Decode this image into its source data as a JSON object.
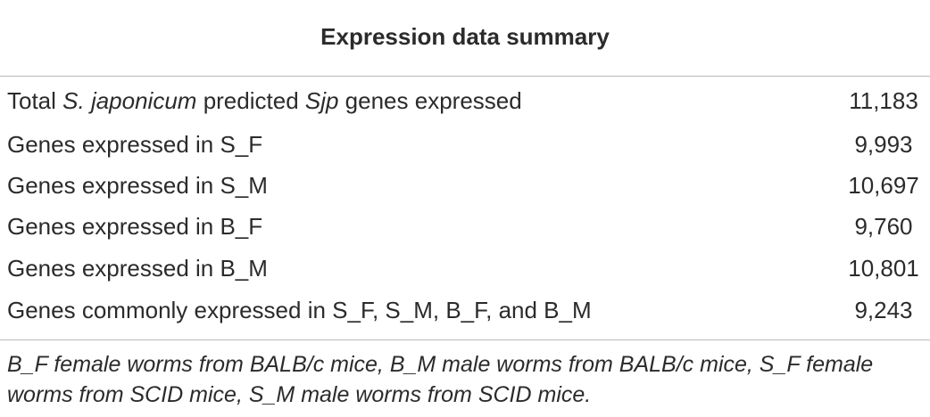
{
  "table": {
    "title": "Expression data summary",
    "rows": [
      [
        [
          "Total ",
          "S. japonicum",
          " predicted ",
          "Sjp",
          " genes expressed"
        ],
        "11,183"
      ],
      [
        "Genes expressed in S_F",
        "9,993"
      ],
      [
        "Genes expressed in S_M",
        "10,697"
      ],
      [
        "Genes expressed in B_F",
        "9,760"
      ],
      [
        "Genes expressed in B_M",
        "10,801"
      ],
      [
        "Genes commonly expressed in S_F, S_M, B_F, and B_M",
        "9,243"
      ]
    ],
    "footnote": "B_F female worms from BALB/c mice, B_M male worms from BALB/c mice, S_F female worms from SCID mice, S_M male worms from SCID mice."
  }
}
